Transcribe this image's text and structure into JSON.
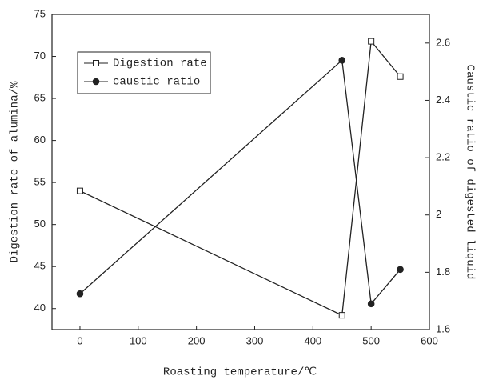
{
  "chart_data": {
    "type": "line",
    "x_label": "Roasting temperature/℃",
    "y_label": "Digestion rate of alumina/%",
    "y2_label": "Caustic ratio of digested liquid",
    "x": [
      0,
      450,
      500,
      550
    ],
    "series": [
      {
        "name": "Digestion rate",
        "color": "#222222",
        "marker": "square",
        "values": [
          54,
          39.2,
          71.8,
          67.6
        ]
      },
      {
        "name": "caustic ratio",
        "color": "#222222",
        "marker": "circle",
        "axis": "y2",
        "values": [
          1.725,
          2.54,
          1.69,
          1.81
        ]
      }
    ],
    "xlim": [
      -48,
      600
    ],
    "xticks": [
      0,
      100,
      200,
      300,
      400,
      500,
      600
    ],
    "ylim": [
      37.5,
      75
    ],
    "yticks": [
      40,
      45,
      50,
      55,
      60,
      65,
      70,
      75
    ],
    "y2lim": [
      1.6,
      2.7
    ],
    "y2ticks": [
      1.6,
      1.8,
      2.0,
      2.2,
      2.4,
      2.6
    ],
    "grid": false,
    "legend": "upper left"
  }
}
